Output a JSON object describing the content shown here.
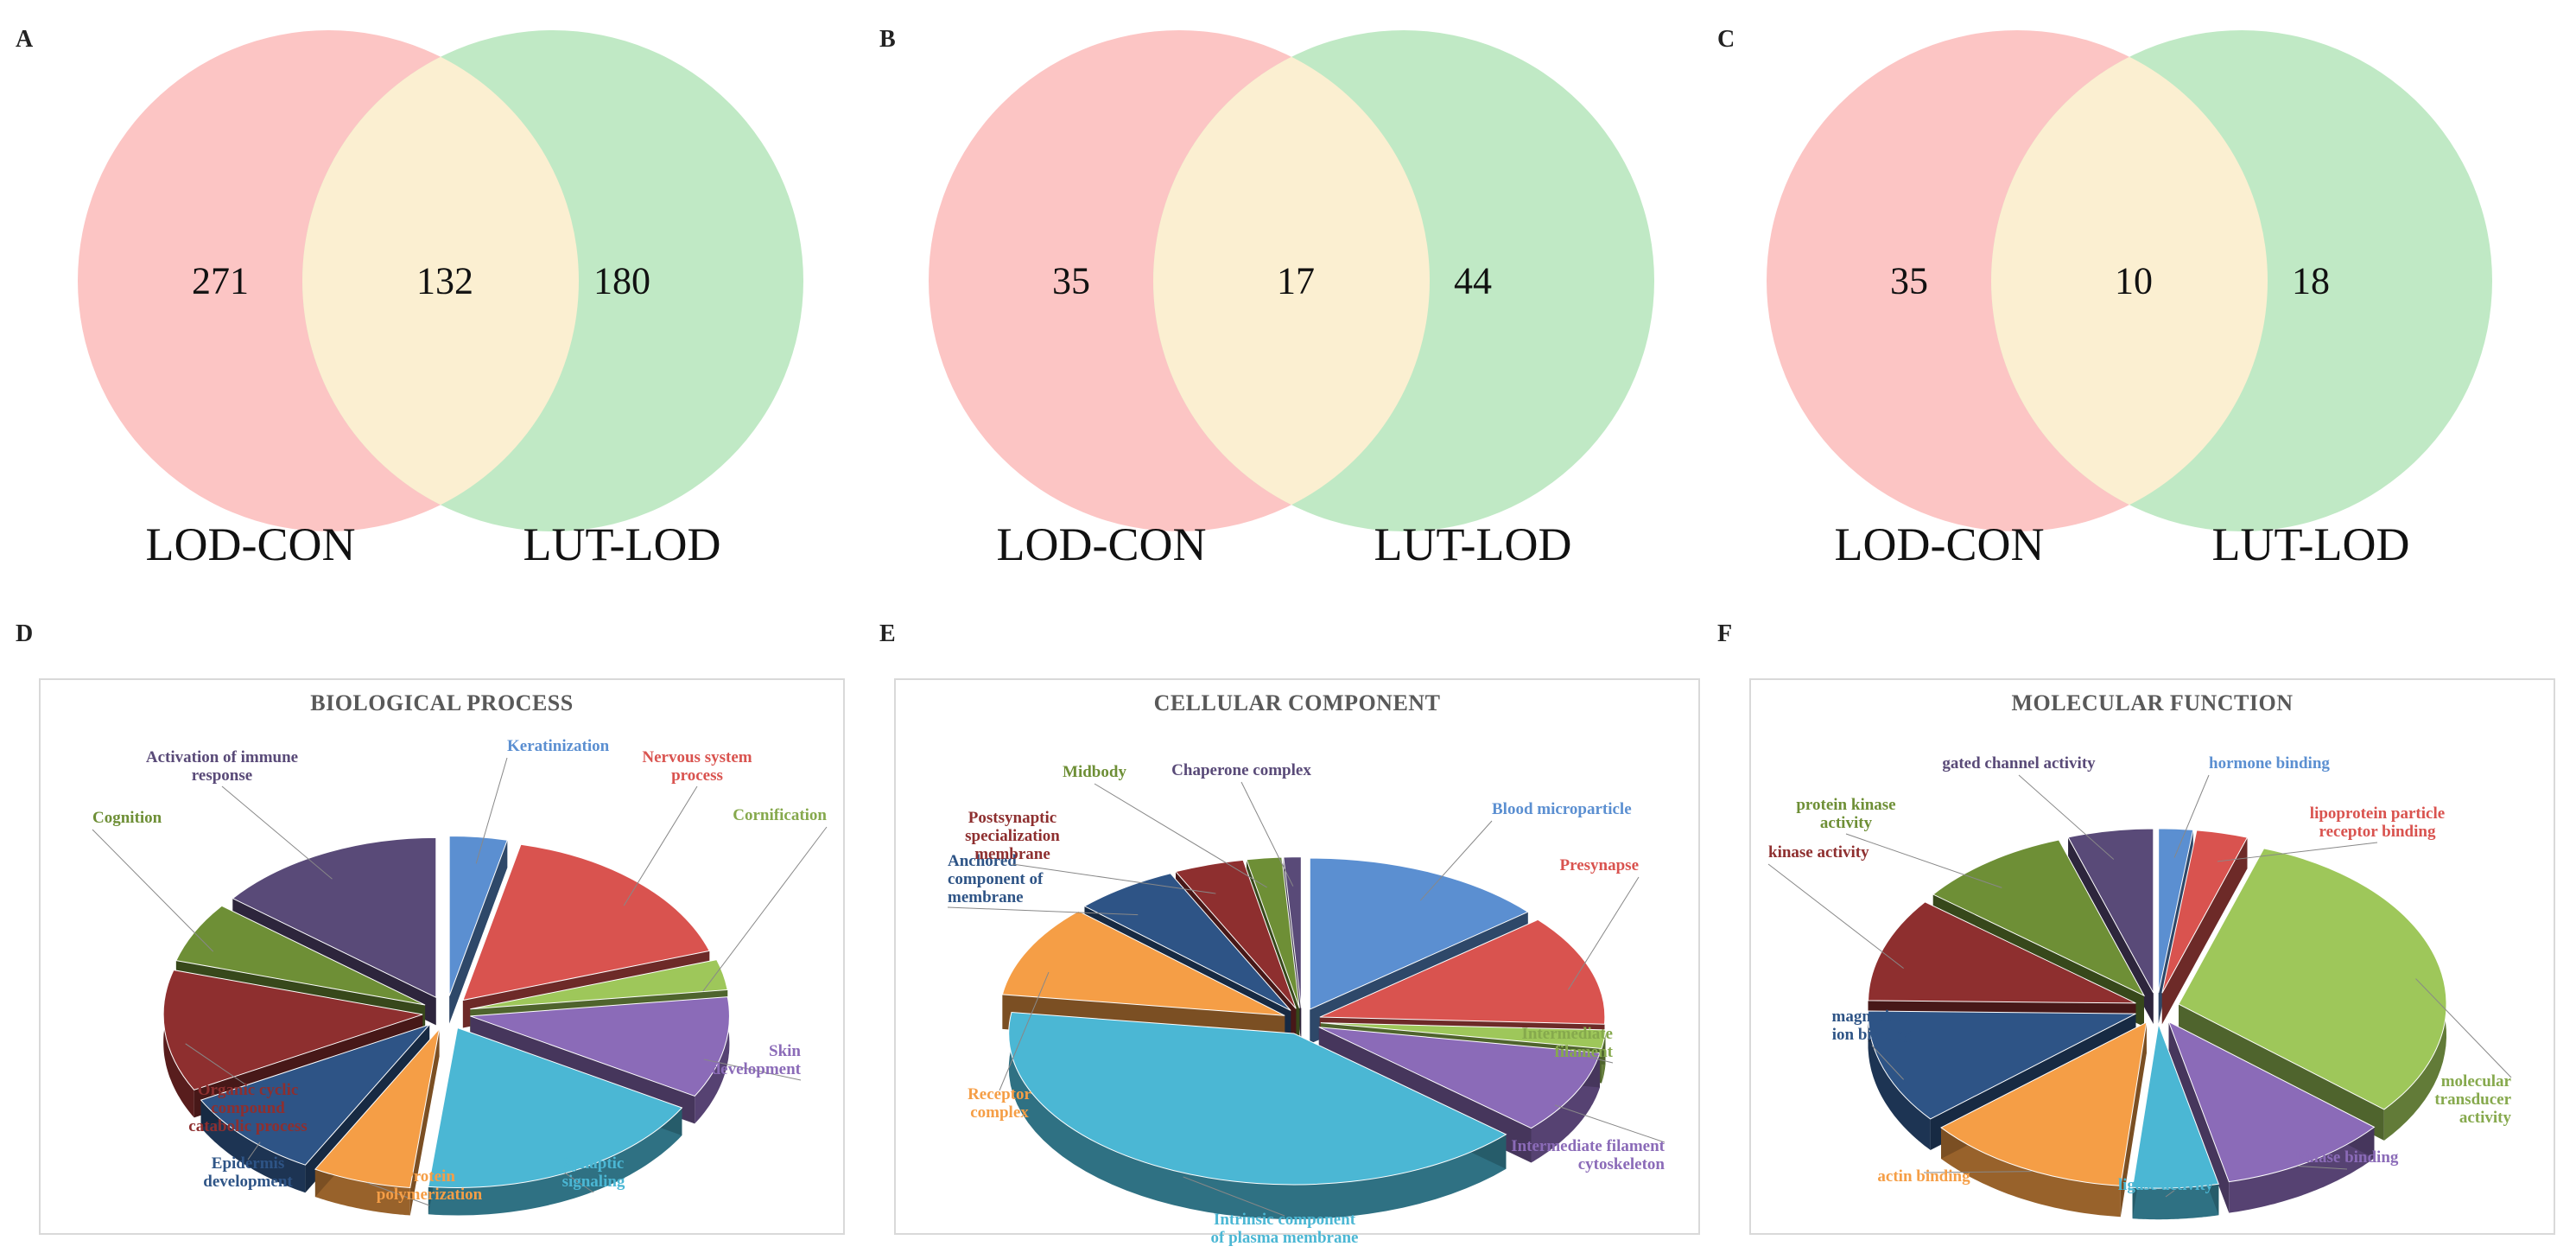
{
  "panels": {
    "A": "A",
    "B": "B",
    "C": "C",
    "D": "D",
    "E": "E",
    "F": "F"
  },
  "colors": {
    "left_circle": "#fcc5c4",
    "right_circle": "#c0e9c5",
    "overlap": "#fbefd1"
  },
  "venns": [
    {
      "left_only": "271",
      "both": "132",
      "right_only": "180",
      "left_label": "LOD-CON",
      "right_label": "LUT-LOD"
    },
    {
      "left_only": "35",
      "both": "17",
      "right_only": "44",
      "left_label": "LOD-CON",
      "right_label": "LUT-LOD"
    },
    {
      "left_only": "35",
      "both": "10",
      "right_only": "18",
      "left_label": "LOD-CON",
      "right_label": "LUT-LOD"
    }
  ],
  "chart_data": [
    {
      "type": "pie",
      "title": "BIOLOGICAL PROCESS",
      "slices": [
        {
          "label": "Keratinization",
          "value": 3.5,
          "color": "#5b8fd1"
        },
        {
          "label": "Nervous system process",
          "value": 16,
          "color": "#d9534f"
        },
        {
          "label": "Cornification",
          "value": 3,
          "color": "#9ec75a"
        },
        {
          "label": "Skin development",
          "value": 10,
          "color": "#8b6bb8"
        },
        {
          "label": "Synaptic signaling",
          "value": 18,
          "color": "#4bb7d4"
        },
        {
          "label": "Protein polymerization",
          "value": 6,
          "color": "#f59e46"
        },
        {
          "label": "Epidermis development",
          "value": 9,
          "color": "#2e5486"
        },
        {
          "label": "Organic cyclic compound catabolic process",
          "value": 12,
          "color": "#8e2f2f"
        },
        {
          "label": "Cognition",
          "value": 6,
          "color": "#6e8f36"
        },
        {
          "label": "Activation of immune response",
          "value": 14,
          "color": "#594a78"
        }
      ]
    },
    {
      "type": "pie",
      "title": "CELLULAR COMPONENT",
      "slices": [
        {
          "label": "Blood microparticle",
          "value": 14,
          "color": "#5b8fd1"
        },
        {
          "label": "Presynapse",
          "value": 12,
          "color": "#d9534f"
        },
        {
          "label": "Intermediate filament",
          "value": 2,
          "color": "#9ec75a"
        },
        {
          "label": "Intermediate filament cytoskeleton",
          "value": 9,
          "color": "#8b6bb8"
        },
        {
          "label": "Intrinsic component of plasma membrane",
          "value": 41,
          "color": "#4bb7d4"
        },
        {
          "label": "Receptor complex",
          "value": 10,
          "color": "#f59e46"
        },
        {
          "label": "Anchored component of membrane",
          "value": 6,
          "color": "#2e5486"
        },
        {
          "label": "Postsynaptic specialization membrane",
          "value": 4,
          "color": "#8e2f2f"
        },
        {
          "label": "Midbody",
          "value": 2,
          "color": "#6e8f36"
        },
        {
          "label": "Chaperone complex",
          "value": 1,
          "color": "#594a78"
        }
      ]
    },
    {
      "type": "pie",
      "title": "MOLECULAR FUNCTION",
      "slices": [
        {
          "label": "hormone binding",
          "value": 2,
          "color": "#5b8fd1"
        },
        {
          "label": "lipoprotein particle receptor binding",
          "value": 3,
          "color": "#d9534f"
        },
        {
          "label": "molecular transducer activity",
          "value": 30,
          "color": "#9ec75a"
        },
        {
          "label": "kinase binding",
          "value": 10,
          "color": "#8b6bb8"
        },
        {
          "label": "ligase activity",
          "value": 5,
          "color": "#4bb7d4"
        },
        {
          "label": "actin binding",
          "value": 12,
          "color": "#f59e46"
        },
        {
          "label": "magnesium ion binding",
          "value": 11,
          "color": "#2e5486"
        },
        {
          "label": "kinase activity",
          "value": 10,
          "color": "#8e2f2f"
        },
        {
          "label": "protein kinase activity",
          "value": 9,
          "color": "#6e8f36"
        },
        {
          "label": "gated channel activity",
          "value": 5,
          "color": "#594a78"
        }
      ]
    }
  ]
}
